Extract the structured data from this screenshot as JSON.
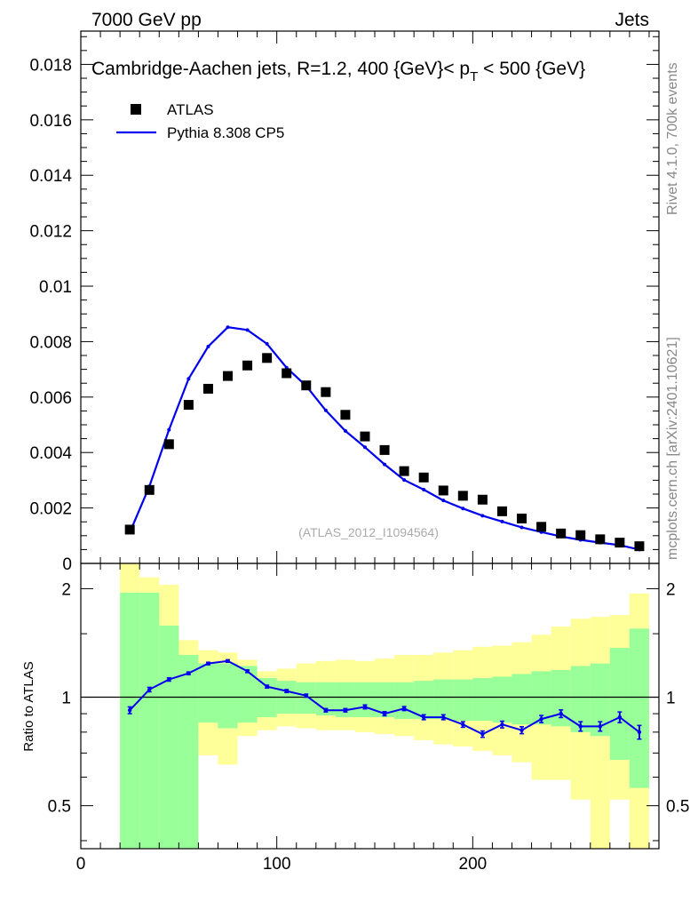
{
  "header": {
    "left": "7000 GeV pp",
    "right": "Jets"
  },
  "side_labels": {
    "rivet": "Rivet 4.1.0,  700k events",
    "mcplots": "mcplots.cern.ch [arXiv:2401.10621]"
  },
  "colors": {
    "mc_line": "#0000ee",
    "data_marker": "#000000",
    "band_inner": "#99ff99",
    "band_outer": "#ffff99"
  },
  "chart_data": [
    {
      "type": "line",
      "panel": "main",
      "title": "Cambridge-Aachen jets, R=1.2, 400 {GeV}< p_T < 500 {GeV}",
      "title_parts": {
        "prefix": "Cambridge-Aachen jets, R=1.2, 400 {GeV}< p",
        "subscript": "T",
        "suffix": " < 500 {GeV}"
      },
      "watermark": "(ATLAS_2012_I1094564)",
      "xlim": [
        0,
        295
      ],
      "ylim": [
        0,
        0.0192
      ],
      "yticks": [
        0,
        0.002,
        0.004,
        0.006,
        0.008,
        0.01,
        0.012,
        0.014,
        0.016,
        0.018
      ],
      "ytick_labels": [
        "0",
        "0.002",
        "0.004",
        "0.006",
        "0.008",
        "0.01",
        "0.012",
        "0.014",
        "0.016",
        "0.018"
      ],
      "x": [
        25,
        35,
        45,
        55,
        65,
        75,
        85,
        95,
        105,
        115,
        125,
        135,
        145,
        155,
        165,
        175,
        185,
        195,
        205,
        215,
        225,
        235,
        245,
        255,
        265,
        275,
        285
      ],
      "series": [
        {
          "name": "ATLAS",
          "style": "marker",
          "values": [
            0.00122,
            0.00265,
            0.0043,
            0.00572,
            0.0063,
            0.00676,
            0.00714,
            0.00741,
            0.00686,
            0.00642,
            0.00618,
            0.00536,
            0.00458,
            0.00409,
            0.00333,
            0.0031,
            0.00263,
            0.00244,
            0.0023,
            0.00188,
            0.00162,
            0.00132,
            0.00108,
            0.00102,
            0.00087,
            0.00075,
            0.00062
          ]
        },
        {
          "name": "Pythia 8.308 CP5",
          "style": "line",
          "values": [
            0.00112,
            0.00278,
            0.00482,
            0.00666,
            0.00782,
            0.00852,
            0.00842,
            0.00792,
            0.00706,
            0.0064,
            0.00552,
            0.00478,
            0.00419,
            0.00357,
            0.00301,
            0.00266,
            0.00227,
            0.00198,
            0.00172,
            0.00151,
            0.0013,
            0.00113,
            0.00097,
            0.00085,
            0.00075,
            0.00066,
            0.0005
          ]
        }
      ]
    },
    {
      "type": "line",
      "panel": "ratio",
      "ylabel": "Ratio to ATLAS",
      "xlim": [
        0,
        295
      ],
      "ylim": [
        0.38,
        2.35
      ],
      "yticks": [
        0.5,
        1,
        2
      ],
      "ytick_labels": [
        "0.5",
        "1",
        "2"
      ],
      "xticks": [
        0,
        100,
        200
      ],
      "xtick_labels": [
        "0",
        "100",
        "200"
      ],
      "bins": [
        [
          20,
          30
        ],
        [
          30,
          40
        ],
        [
          40,
          50
        ],
        [
          50,
          60
        ],
        [
          60,
          70
        ],
        [
          70,
          80
        ],
        [
          80,
          90
        ],
        [
          90,
          100
        ],
        [
          100,
          110
        ],
        [
          110,
          120
        ],
        [
          120,
          130
        ],
        [
          130,
          140
        ],
        [
          140,
          150
        ],
        [
          150,
          160
        ],
        [
          160,
          170
        ],
        [
          170,
          180
        ],
        [
          180,
          190
        ],
        [
          190,
          200
        ],
        [
          200,
          210
        ],
        [
          210,
          220
        ],
        [
          220,
          230
        ],
        [
          230,
          240
        ],
        [
          240,
          250
        ],
        [
          250,
          260
        ],
        [
          260,
          270
        ],
        [
          270,
          280
        ],
        [
          280,
          290
        ]
      ],
      "band_inner_lo": [
        0.38,
        0.38,
        0.38,
        0.38,
        0.85,
        0.82,
        0.85,
        0.88,
        0.9,
        0.9,
        0.89,
        0.88,
        0.88,
        0.88,
        0.87,
        0.87,
        0.87,
        0.86,
        0.86,
        0.85,
        0.84,
        0.84,
        0.83,
        0.8,
        0.78,
        0.67,
        0.56
      ],
      "band_inner_hi": [
        1.95,
        1.95,
        1.58,
        1.31,
        1.24,
        1.24,
        1.22,
        1.13,
        1.11,
        1.1,
        1.1,
        1.1,
        1.1,
        1.1,
        1.1,
        1.11,
        1.12,
        1.12,
        1.13,
        1.14,
        1.16,
        1.18,
        1.19,
        1.22,
        1.24,
        1.37,
        1.55
      ],
      "band_outer_lo": [
        0.38,
        0.38,
        0.38,
        0.79,
        0.69,
        0.65,
        0.78,
        0.81,
        0.83,
        0.82,
        0.81,
        0.81,
        0.8,
        0.79,
        0.78,
        0.76,
        0.74,
        0.73,
        0.71,
        0.69,
        0.66,
        0.59,
        0.59,
        0.52,
        0.38,
        0.52,
        0.38
      ],
      "band_outer_hi": [
        2.35,
        2.15,
        2.05,
        1.44,
        1.35,
        1.33,
        1.27,
        1.18,
        1.2,
        1.24,
        1.26,
        1.27,
        1.26,
        1.28,
        1.31,
        1.31,
        1.33,
        1.35,
        1.38,
        1.39,
        1.42,
        1.49,
        1.57,
        1.65,
        1.67,
        1.69,
        1.94
      ],
      "x": [
        25,
        35,
        45,
        55,
        65,
        75,
        85,
        95,
        105,
        115,
        125,
        135,
        145,
        155,
        165,
        175,
        185,
        195,
        205,
        215,
        225,
        235,
        245,
        255,
        265,
        275,
        285
      ],
      "series": [
        {
          "name": "Pythia 8.308 CP5",
          "values": [
            0.92,
            1.05,
            1.12,
            1.165,
            1.24,
            1.26,
            1.18,
            1.07,
            1.04,
            1.01,
            0.92,
            0.92,
            0.94,
            0.9,
            0.93,
            0.88,
            0.88,
            0.84,
            0.79,
            0.84,
            0.81,
            0.87,
            0.9,
            0.83,
            0.83,
            0.88,
            0.8
          ],
          "errors": [
            0.02,
            0.015,
            0.012,
            0.01,
            0.01,
            0.01,
            0.01,
            0.01,
            0.01,
            0.01,
            0.01,
            0.01,
            0.012,
            0.012,
            0.012,
            0.014,
            0.014,
            0.015,
            0.016,
            0.018,
            0.018,
            0.02,
            0.022,
            0.025,
            0.025,
            0.03,
            0.035
          ]
        }
      ]
    }
  ]
}
